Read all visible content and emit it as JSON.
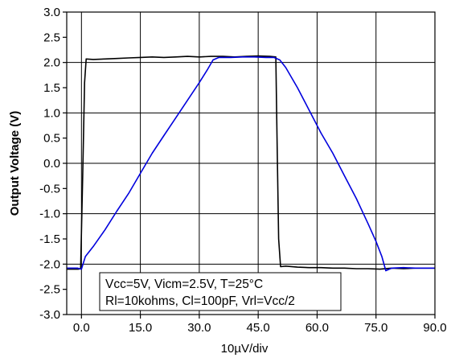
{
  "chart_data": {
    "type": "line",
    "title": "",
    "xlabel": "10µV/div",
    "ylabel": "Output Voltage (V)",
    "xlim": [
      -3.75,
      90.0
    ],
    "ylim": [
      -3.0,
      3.0
    ],
    "x_ticks": [
      0.0,
      15.0,
      30.0,
      45.0,
      60.0,
      75.0,
      90.0
    ],
    "x_tick_labels": [
      "0.0",
      "15.0",
      "30.0",
      "45.0",
      "60.0",
      "75.0",
      "90.0"
    ],
    "y_ticks": [
      -3.0,
      -2.5,
      -2.0,
      -1.5,
      -1.0,
      -0.5,
      0.0,
      0.5,
      1.0,
      1.5,
      2.0,
      2.5,
      3.0
    ],
    "y_tick_labels": [
      "-3.0",
      "-2.5",
      "-2.0",
      "-1.5",
      "-1.0",
      "-0.5",
      "0.0",
      "0.5",
      "1.0",
      "1.5",
      "2.0",
      "2.5",
      "3.0"
    ],
    "grid": true,
    "annotation": {
      "lines": [
        "Vcc=5V, Vicm=2.5V, T=25°C",
        "Rl=10kohms, Cl=100pF, Vrl=Vcc/2"
      ]
    },
    "series": [
      {
        "color": "#000000",
        "x": [
          -3.75,
          -0.8,
          -0.2,
          0.3,
          0.8,
          1.2,
          3,
          6,
          9,
          12,
          15,
          18,
          21,
          24,
          27,
          30,
          33,
          36,
          39,
          42,
          45,
          48,
          49.5,
          49.8,
          50.2,
          50.7,
          52,
          55,
          58,
          61,
          64,
          67,
          70,
          73,
          76,
          79,
          82,
          85,
          88,
          90.0
        ],
        "y": [
          -2.1,
          -2.1,
          -2.09,
          -0.3,
          1.6,
          2.07,
          2.06,
          2.07,
          2.08,
          2.09,
          2.1,
          2.11,
          2.1,
          2.11,
          2.12,
          2.11,
          2.12,
          2.12,
          2.11,
          2.12,
          2.13,
          2.12,
          2.11,
          0.5,
          -1.5,
          -2.05,
          -2.04,
          -2.06,
          -2.07,
          -2.07,
          -2.08,
          -2.08,
          -2.09,
          -2.09,
          -2.1,
          -2.08,
          -2.09,
          -2.08,
          -2.08,
          -2.08
        ]
      },
      {
        "color": "#0000dd",
        "x": [
          -3.75,
          -1.0,
          0.0,
          1.0,
          3.0,
          6.0,
          9.0,
          12.0,
          15.0,
          18.0,
          21.0,
          24.0,
          27.0,
          30.0,
          32.0,
          33.5,
          35.0,
          38.0,
          41.0,
          44.0,
          47.0,
          49.0,
          50.5,
          52.0,
          55.0,
          58.0,
          61.0,
          64.0,
          67.0,
          70.0,
          73.0,
          75.0,
          76.5,
          77.5,
          79.0,
          82.0,
          85.0,
          88.0,
          90.0
        ],
        "y": [
          -2.08,
          -2.08,
          -2.1,
          -1.85,
          -1.65,
          -1.32,
          -0.95,
          -0.6,
          -0.2,
          0.2,
          0.55,
          0.9,
          1.25,
          1.6,
          1.85,
          2.05,
          2.1,
          2.1,
          2.11,
          2.11,
          2.1,
          2.1,
          2.05,
          1.9,
          1.5,
          1.05,
          0.6,
          0.2,
          -0.25,
          -0.7,
          -1.2,
          -1.55,
          -1.85,
          -2.13,
          -2.08,
          -2.07,
          -2.08,
          -2.08,
          -2.08
        ]
      }
    ]
  }
}
